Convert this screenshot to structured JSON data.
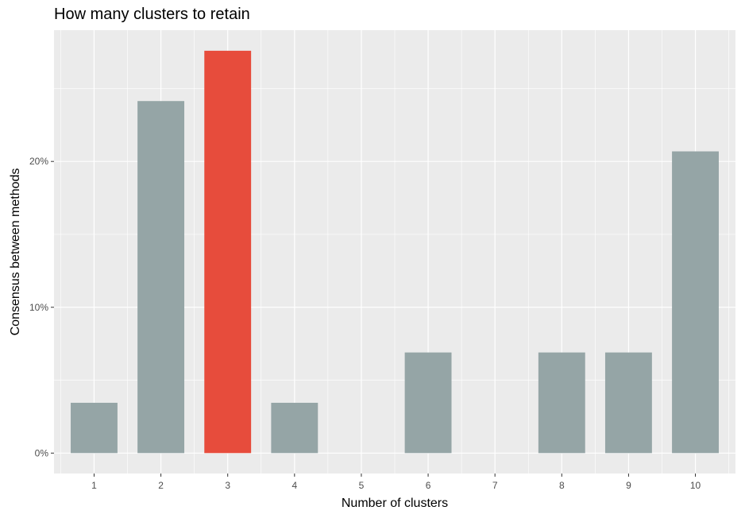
{
  "chart_data": {
    "type": "bar",
    "title": "How many clusters to retain",
    "xlabel": "Number of clusters",
    "ylabel": "Consensus between methods",
    "categories": [
      "1",
      "2",
      "3",
      "4",
      "5",
      "6",
      "7",
      "8",
      "9",
      "10"
    ],
    "values": [
      3.45,
      24.14,
      27.59,
      3.45,
      0,
      6.9,
      0,
      6.9,
      6.9,
      20.69
    ],
    "highlight_index": 2,
    "ylim": [
      -1.4,
      29.0
    ],
    "yticks": [
      0,
      10,
      20
    ],
    "ytick_labels": [
      "0%",
      "10%",
      "20%"
    ],
    "grid": true,
    "legend": "none",
    "colors": {
      "bar": "#95a5a6",
      "highlight": "#e74c3c",
      "panel": "#ebebeb",
      "grid": "#ffffff"
    }
  }
}
